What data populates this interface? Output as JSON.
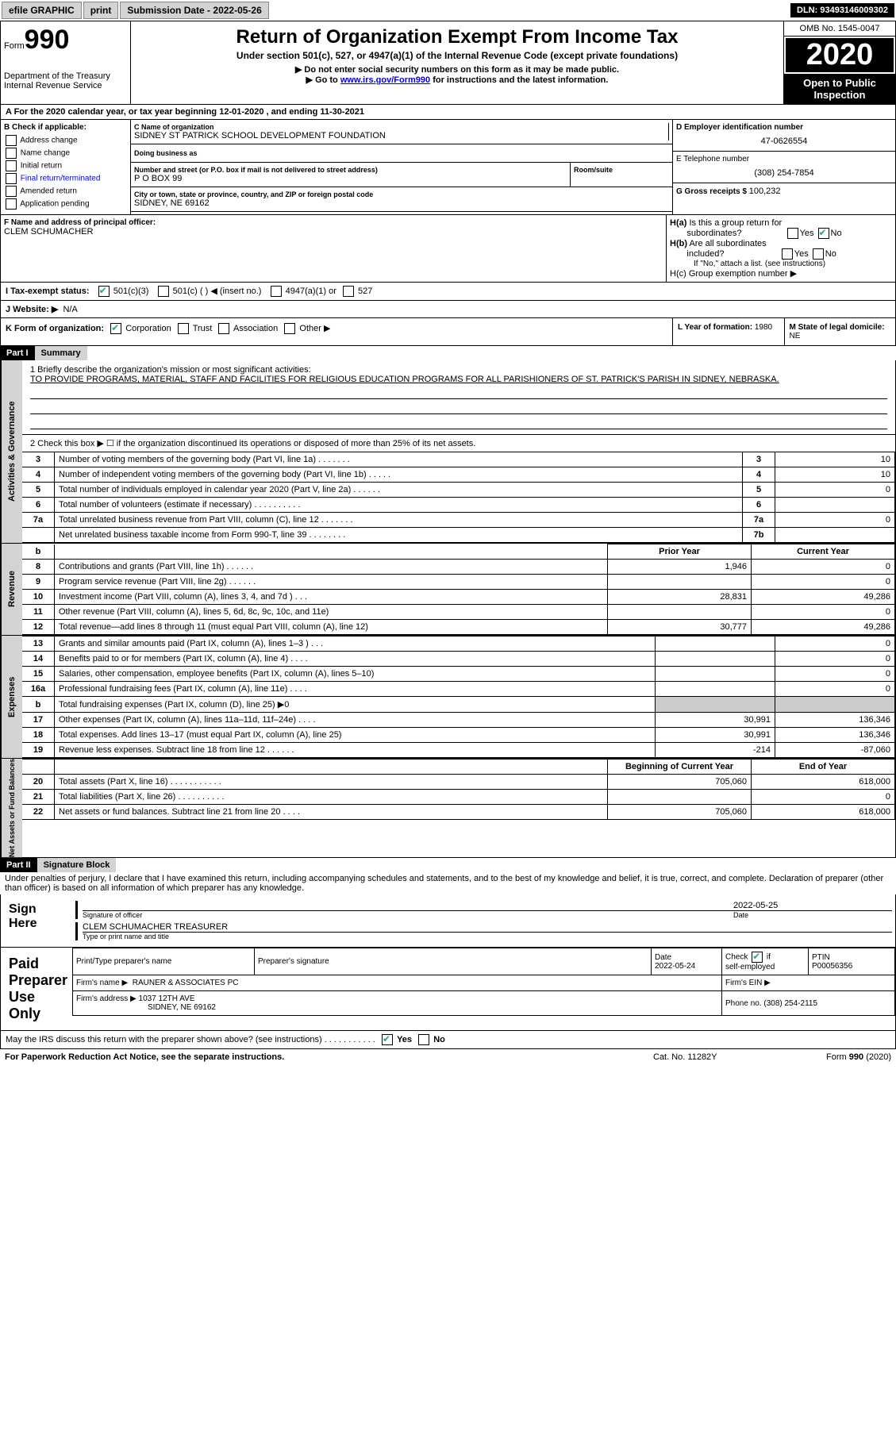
{
  "topbar": {
    "efile": "efile GRAPHIC",
    "print": "print",
    "subdate_label": "Submission Date - ",
    "subdate": "2022-05-26",
    "dln_label": "DLN: ",
    "dln": "93493146009302"
  },
  "header": {
    "form_word": "Form",
    "form_num": "990",
    "dept": "Department of the Treasury",
    "irs": "Internal Revenue Service",
    "title": "Return of Organization Exempt From Income Tax",
    "subtitle": "Under section 501(c), 527, or 4947(a)(1) of the Internal Revenue Code (except private foundations)",
    "note1": "▶ Do not enter social security numbers on this form as it may be made public.",
    "note2_pre": "▶ Go to ",
    "note2_link": "www.irs.gov/Form990",
    "note2_post": " for instructions and the latest information.",
    "omb": "OMB No. 1545-0047",
    "year": "2020",
    "inspect": "Open to Public Inspection"
  },
  "rowA": {
    "text_pre": "A For the 2020 calendar year, or tax year beginning ",
    "date1": "12-01-2020",
    "mid": "   , and ending ",
    "date2": "11-30-2021"
  },
  "colB": {
    "title": "B Check if applicable:",
    "items": [
      "Address change",
      "Name change",
      "Initial return",
      "Final return/terminated",
      "Amended return",
      "Application pending"
    ]
  },
  "colC": {
    "name_label": "C Name of organization",
    "name": "SIDNEY ST PATRICK SCHOOL DEVELOPMENT FOUNDATION",
    "dba_label": "Doing business as",
    "street_label": "Number and street (or P.O. box if mail is not delivered to street address)",
    "street": "P O BOX 99",
    "room_label": "Room/suite",
    "city_label": "City or town, state or province, country, and ZIP or foreign postal code",
    "city": "SIDNEY, NE  69162"
  },
  "colD": {
    "d_label": "D Employer identification number",
    "ein": "47-0626554",
    "e_label": "E Telephone number",
    "phone": "(308) 254-7854",
    "g_label": "G Gross receipts $ ",
    "g_val": "100,232"
  },
  "rowF": {
    "f_label": "F  Name and address of principal officer:",
    "f_name": "CLEM SCHUMACHER",
    "ha_label": "H(a)  Is this a group return for subordinates?",
    "hb_label": "H(b)  Are all subordinates included?",
    "hb_note": "If \"No,\" attach a list. (see instructions)",
    "hc_label": "H(c)  Group exemption number ▶"
  },
  "rowI": {
    "label": "I   Tax-exempt status:",
    "o1": "501(c)(3)",
    "o2": "501(c) (  ) ◀ (insert no.)",
    "o3": "4947(a)(1) or",
    "o4": "527"
  },
  "rowJ": {
    "label": "J   Website: ▶",
    "val": "N/A"
  },
  "rowK": {
    "label": "K Form of organization:",
    "o1": "Corporation",
    "o2": "Trust",
    "o3": "Association",
    "o4": "Other ▶",
    "l_label": "L Year of formation: ",
    "l_val": "1980",
    "m_label": "M State of legal domicile: ",
    "m_val": "NE"
  },
  "part1": {
    "hdr": "Part I",
    "title": "Summary",
    "q1": "1   Briefly describe the organization's mission or most significant activities:",
    "mission": "TO PROVIDE PROGRAMS, MATERIAL, STAFF AND FACILITIES FOR RELIGIOUS EDUCATION PROGRAMS FOR ALL PARISHIONERS OF ST. PATRICK'S PARISH IN SIDNEY, NEBRASKA.",
    "q2": "2   Check this box ▶ ☐  if the organization discontinued its operations or disposed of more than 25% of its net assets.",
    "rows_ag": [
      {
        "n": "3",
        "t": "Number of voting members of the governing body (Part VI, line 1a)  .     .     .     .     .     .     .",
        "ln": "3",
        "v": "10"
      },
      {
        "n": "4",
        "t": "Number of independent voting members of the governing body (Part VI, line 1b)  .     .     .     .     .",
        "ln": "4",
        "v": "10"
      },
      {
        "n": "5",
        "t": "Total number of individuals employed in calendar year 2020 (Part V, line 2a)  .     .     .     .     .     .",
        "ln": "5",
        "v": "0"
      },
      {
        "n": "6",
        "t": "Total number of volunteers (estimate if necessary)  .     .     .     .     .     .     .     .     .     .",
        "ln": "6",
        "v": ""
      },
      {
        "n": "7a",
        "t": "Total unrelated business revenue from Part VIII, column (C), line 12   .     .     .     .     .     .     .",
        "ln": "7a",
        "v": "0"
      },
      {
        "n": "",
        "t": "Net unrelated business taxable income from Form 990-T, line 39   .     .     .     .     .     .     .     .",
        "ln": "7b",
        "v": ""
      }
    ],
    "col_prior": "Prior Year",
    "col_curr": "Current Year",
    "rows_rev": [
      {
        "n": "8",
        "t": "Contributions and grants (Part VIII, line 1h)   .     .     .     .     .     .",
        "p": "1,946",
        "c": "0"
      },
      {
        "n": "9",
        "t": "Program service revenue (Part VIII, line 2g)    .     .     .     .     .     .",
        "p": "",
        "c": "0"
      },
      {
        "n": "10",
        "t": "Investment income (Part VIII, column (A), lines 3, 4, and 7d )    .     .     .",
        "p": "28,831",
        "c": "49,286"
      },
      {
        "n": "11",
        "t": "Other revenue (Part VIII, column (A), lines 5, 6d, 8c, 9c, 10c, and 11e)",
        "p": "",
        "c": "0"
      },
      {
        "n": "12",
        "t": "Total revenue—add lines 8 through 11 (must equal Part VIII, column (A), line 12)",
        "p": "30,777",
        "c": "49,286"
      }
    ],
    "rows_exp": [
      {
        "n": "13",
        "t": "Grants and similar amounts paid (Part IX, column (A), lines 1–3 )  .     .     .",
        "p": "",
        "c": "0"
      },
      {
        "n": "14",
        "t": "Benefits paid to or for members (Part IX, column (A), line 4)   .     .     .     .",
        "p": "",
        "c": "0"
      },
      {
        "n": "15",
        "t": "Salaries, other compensation, employee benefits (Part IX, column (A), lines 5–10)",
        "p": "",
        "c": "0"
      },
      {
        "n": "16a",
        "t": "Professional fundraising fees (Part IX, column (A), line 11e)   .     .     .     .",
        "p": "",
        "c": "0"
      },
      {
        "n": "b",
        "t": "Total fundraising expenses (Part IX, column (D), line 25) ▶0",
        "p": "GREY",
        "c": "GREY"
      },
      {
        "n": "17",
        "t": "Other expenses (Part IX, column (A), lines 11a–11d, 11f–24e)   .     .     .     .",
        "p": "30,991",
        "c": "136,346"
      },
      {
        "n": "18",
        "t": "Total expenses. Add lines 13–17 (must equal Part IX, column (A), line 25)",
        "p": "30,991",
        "c": "136,346"
      },
      {
        "n": "19",
        "t": "Revenue less expenses. Subtract line 18 from line 12  .     .     .     .     .     .",
        "p": "-214",
        "c": "-87,060"
      }
    ],
    "col_beg": "Beginning of Current Year",
    "col_end": "End of Year",
    "rows_na": [
      {
        "n": "20",
        "t": "Total assets (Part X, line 16)  .     .     .     .     .     .     .     .     .     .     .",
        "p": "705,060",
        "c": "618,000"
      },
      {
        "n": "21",
        "t": "Total liabilities (Part X, line 26)  .     .     .     .     .     .     .     .     .     .",
        "p": "",
        "c": "0"
      },
      {
        "n": "22",
        "t": "Net assets or fund balances. Subtract line 21 from line 20  .     .     .     .",
        "p": "705,060",
        "c": "618,000"
      }
    ],
    "vtab_ag": "Activities & Governance",
    "vtab_rev": "Revenue",
    "vtab_exp": "Expenses",
    "vtab_na": "Net Assets or Fund Balances"
  },
  "part2": {
    "hdr": "Part II",
    "title": "Signature Block",
    "decl": "Under penalties of perjury, I declare that I have examined this return, including accompanying schedules and statements, and to the best of my knowledge and belief, it is true, correct, and complete. Declaration of preparer (other than officer) is based on all information of which preparer has any knowledge.",
    "sign_here": "Sign Here",
    "sig_of_officer": "Signature of officer",
    "sig_date": "2022-05-25",
    "date_lbl": "Date",
    "officer_name": "CLEM SCHUMACHER  TREASURER",
    "type_name": "Type or print name and title",
    "paid": "Paid Preparer Use Only",
    "p_name_lbl": "Print/Type preparer's name",
    "p_sig_lbl": "Preparer's signature",
    "p_date_lbl": "Date",
    "p_date": "2022-05-24",
    "p_check_lbl": "Check ☑ if self-employed",
    "ptin_lbl": "PTIN",
    "ptin": "P00056356",
    "firm_name_lbl": "Firm's name    ▶",
    "firm_name": "RAUNER & ASSOCIATES PC",
    "firm_ein_lbl": "Firm's EIN ▶",
    "firm_addr_lbl": "Firm's address ▶",
    "firm_addr1": "1037 12TH AVE",
    "firm_addr2": "SIDNEY, NE  69162",
    "firm_phone_lbl": "Phone no. ",
    "firm_phone": "(308) 254-2115",
    "discuss": "May the IRS discuss this return with the preparer shown above? (see instructions)   .     .     .     .     .     .     .     .     .     .     .",
    "yes": "Yes",
    "no": "No"
  },
  "footer": {
    "pra": "For Paperwork Reduction Act Notice, see the separate instructions.",
    "cat": "Cat. No. 11282Y",
    "form": "Form 990 (2020)"
  }
}
